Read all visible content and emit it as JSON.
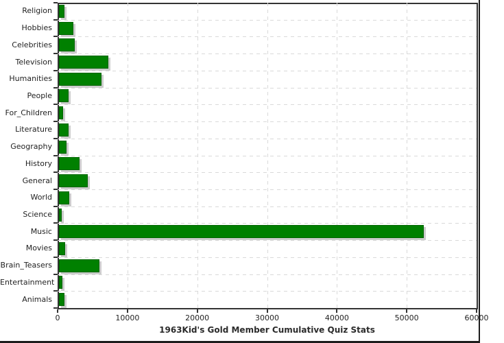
{
  "frame": {
    "background": "#ffffff",
    "edge_color": "#1c1c1c"
  },
  "chart_data": {
    "type": "bar",
    "orientation": "horizontal",
    "title": "1963Kid's Gold Member Cumulative Quiz Stats",
    "categories": [
      "Religion",
      "Hobbies",
      "Celebrities",
      "Television",
      "Humanities",
      "People",
      "For_Children",
      "Literature",
      "Geography",
      "History",
      "General",
      "World",
      "Science",
      "Music",
      "Movies",
      "Brain_Teasers",
      "Entertainment",
      "Animals"
    ],
    "values": [
      750,
      2050,
      2250,
      7050,
      6100,
      1400,
      550,
      1400,
      1100,
      2900,
      4150,
      1500,
      400,
      52250,
      900,
      5800,
      500,
      800
    ],
    "xlabel": "",
    "ylabel": "",
    "xlim": [
      0,
      60000
    ],
    "x_ticks": [
      0,
      10000,
      20000,
      30000,
      40000,
      50000,
      60000
    ],
    "grid": true,
    "legend": false,
    "styles": {
      "bar_fill": "#008000",
      "bar_border": "#006400",
      "bar_shadow": "#cccccc",
      "gridline_color": "#d9d9d9",
      "plot_border_color": "#333333",
      "tick_color": "#333333",
      "label_color": "#222222",
      "title_color": "#2b2b2b"
    }
  }
}
